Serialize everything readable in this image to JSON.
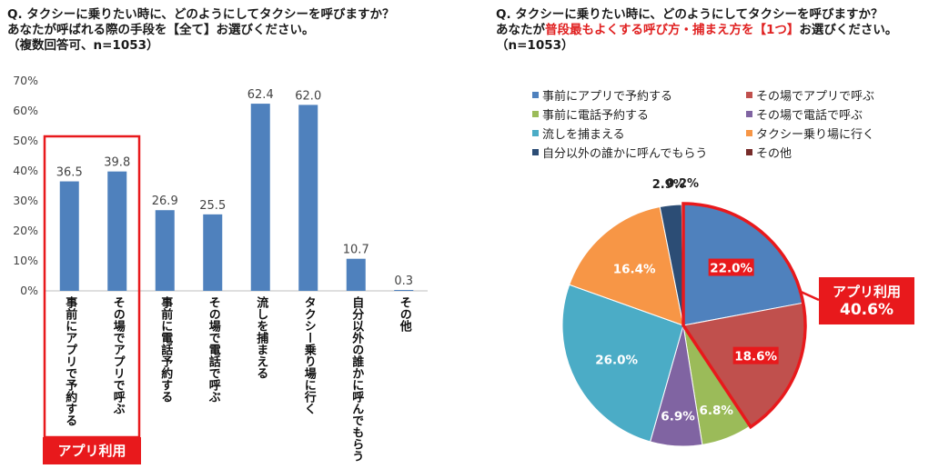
{
  "left_title": {
    "line1": "Q. タクシーに乗りたい時に、どのようにしてタクシーを呼びますか？",
    "line2": "あなたが呼ばれる際の手段を【全て】お選びください。",
    "line3": "（複数回答可、n=1053）"
  },
  "right_title": {
    "line1": "Q. タクシーに乗りたい時に、どのようにしてタクシーを呼びますか？",
    "line2_pre": "あなたが",
    "line2_highlight": "普段最もよくする呼び方・捕まえ方を【1つ】",
    "line2_post": "お選びください。",
    "line3": "（n=1053）"
  },
  "chart_data": [
    {
      "type": "bar",
      "title": "あなたが呼ばれる際の手段（複数回答可、n=1053）",
      "categories": [
        "事前にアプリで予約する",
        "その場でアプリで呼ぶ",
        "事前に電話予約する",
        "その場で電話で呼ぶ",
        "流しを捕まえる",
        "タクシー乗り場に行く",
        "自分以外の誰かに呼んでもらう",
        "その他"
      ],
      "values": [
        36.5,
        39.8,
        26.9,
        25.5,
        62.4,
        62.0,
        10.7,
        0.3
      ],
      "value_labels": [
        "36.5",
        "39.8",
        "26.9",
        "25.5",
        "62.4",
        "62.0",
        "10.7",
        "0.3"
      ],
      "ylim": [
        0,
        70
      ],
      "yticks": [
        0,
        10,
        20,
        30,
        40,
        50,
        60,
        70
      ],
      "ytick_labels": [
        "0%",
        "10%",
        "20%",
        "30%",
        "40%",
        "50%",
        "60%",
        "70%"
      ],
      "bar_color": "#4f81bd",
      "highlight_label": "アプリ利用"
    },
    {
      "type": "pie",
      "title": "普段最もよくする呼び方・捕まえ方（n=1053）",
      "labels": [
        "事前にアプリで予約する",
        "その場でアプリで呼ぶ",
        "事前に電話予約する",
        "その場で電話で呼ぶ",
        "流しを捕まえる",
        "タクシー乗り場に行く",
        "自分以外の誰かに呼んでもらう",
        "その他"
      ],
      "values": [
        22.0,
        18.6,
        6.8,
        6.9,
        26.0,
        16.4,
        2.9,
        0.2
      ],
      "value_labels": [
        "22.0%",
        "18.6%",
        "6.8%",
        "6.9%",
        "26.0%",
        "16.4%",
        "2.9%",
        "0.2%"
      ],
      "colors": [
        "#4f81bd",
        "#c0504d",
        "#9bbb59",
        "#8064a2",
        "#4bacc6",
        "#f79646",
        "#2c4d75",
        "#772c2a"
      ],
      "legend_position": "top",
      "highlight_label": "アプリ利用",
      "highlight_value": "40.6%"
    }
  ],
  "accent_color": "#e8191c"
}
